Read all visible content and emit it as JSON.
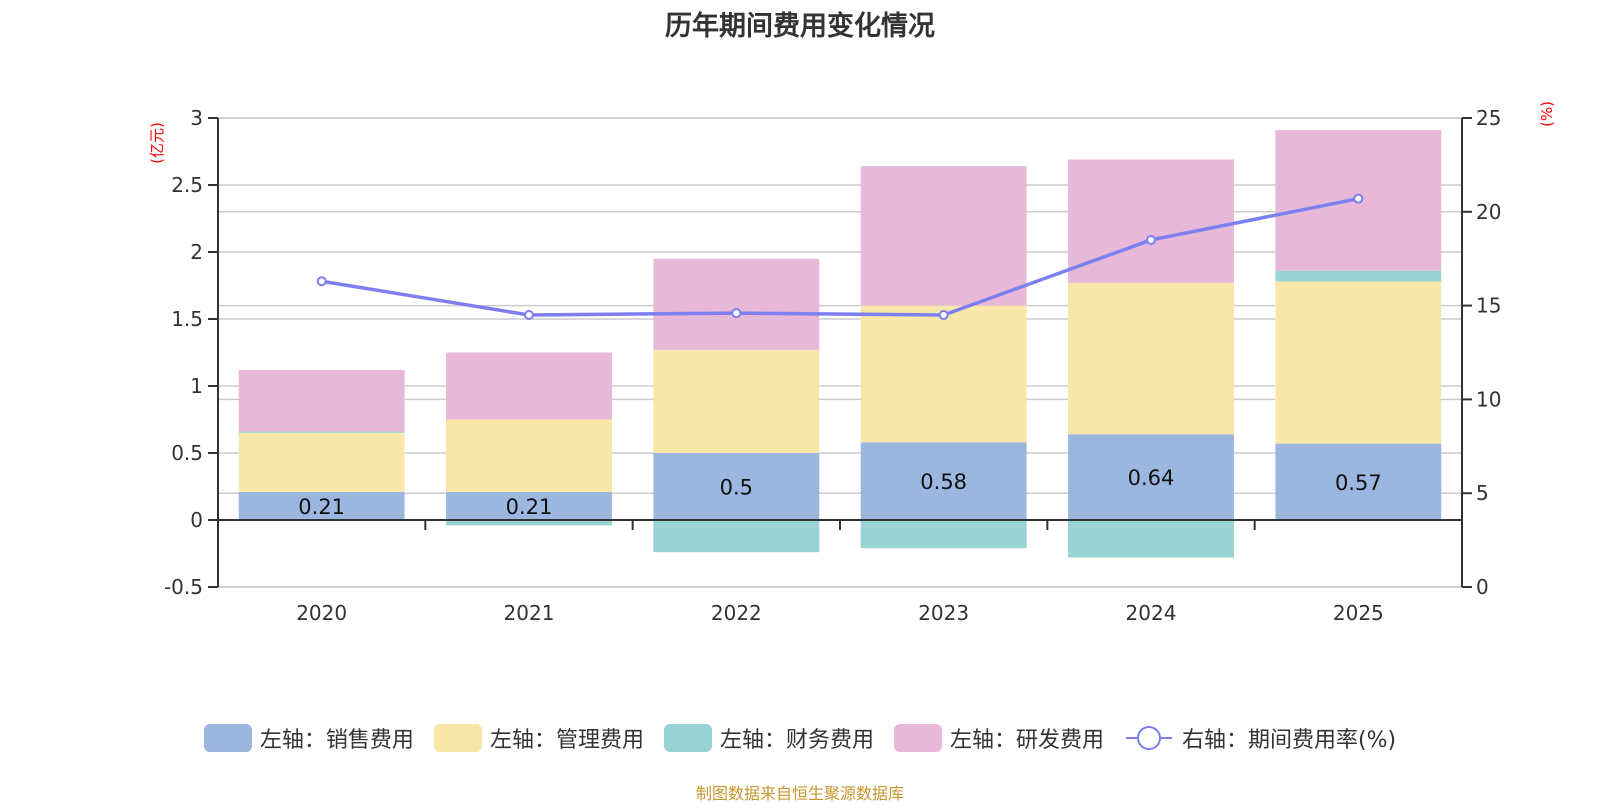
{
  "chart_data": {
    "type": "bar",
    "stacked": true,
    "title": "历年期间费用变化情况",
    "categories": [
      "2020",
      "2021",
      "2022",
      "2023",
      "2024",
      "2025"
    ],
    "left_axis": {
      "unit_label": "(亿元)",
      "range": [
        -0.5,
        3
      ],
      "ticks": [
        "-0.5",
        "0",
        "0.5",
        "1",
        "1.5",
        "2",
        "2.5",
        "3"
      ],
      "tick_values": [
        -0.5,
        0,
        0.5,
        1,
        1.5,
        2,
        2.5,
        3
      ]
    },
    "right_axis": {
      "unit_label": "(%)",
      "range": [
        0,
        25
      ],
      "ticks": [
        "0",
        "5",
        "10",
        "15",
        "20",
        "25"
      ],
      "tick_values": [
        0,
        5,
        10,
        15,
        20,
        25
      ]
    },
    "grid": true,
    "series": [
      {
        "name": "左轴：销售费用",
        "axis": "left",
        "type": "bar",
        "color": "#9bb7e0",
        "values": [
          0.21,
          0.21,
          0.5,
          0.58,
          0.64,
          0.57
        ],
        "labels": [
          "0.21",
          "0.21",
          "0.5",
          "0.58",
          "0.64",
          "0.57"
        ]
      },
      {
        "name": "左轴：管理费用",
        "axis": "left",
        "type": "bar",
        "color": "#f8e7a9",
        "values": [
          0.44,
          0.54,
          0.77,
          1.02,
          1.13,
          1.21
        ]
      },
      {
        "name": "左轴：财务费用",
        "axis": "left",
        "type": "bar",
        "color": "#98d4d4",
        "values": [
          0.01,
          -0.04,
          -0.24,
          -0.21,
          -0.28,
          0.08
        ]
      },
      {
        "name": "左轴：研发费用",
        "axis": "left",
        "type": "bar",
        "color": "#e7b8d8",
        "values": [
          0.46,
          0.5,
          0.68,
          1.04,
          0.92,
          1.05
        ]
      },
      {
        "name": "右轴：期间费用率(%)",
        "axis": "right",
        "type": "line",
        "color": "#7b7ff0",
        "values": [
          16.3,
          14.5,
          14.6,
          14.5,
          18.5,
          20.7
        ]
      }
    ],
    "legend_position": "bottom"
  },
  "source_note": "制图数据来自恒生聚源数据库"
}
